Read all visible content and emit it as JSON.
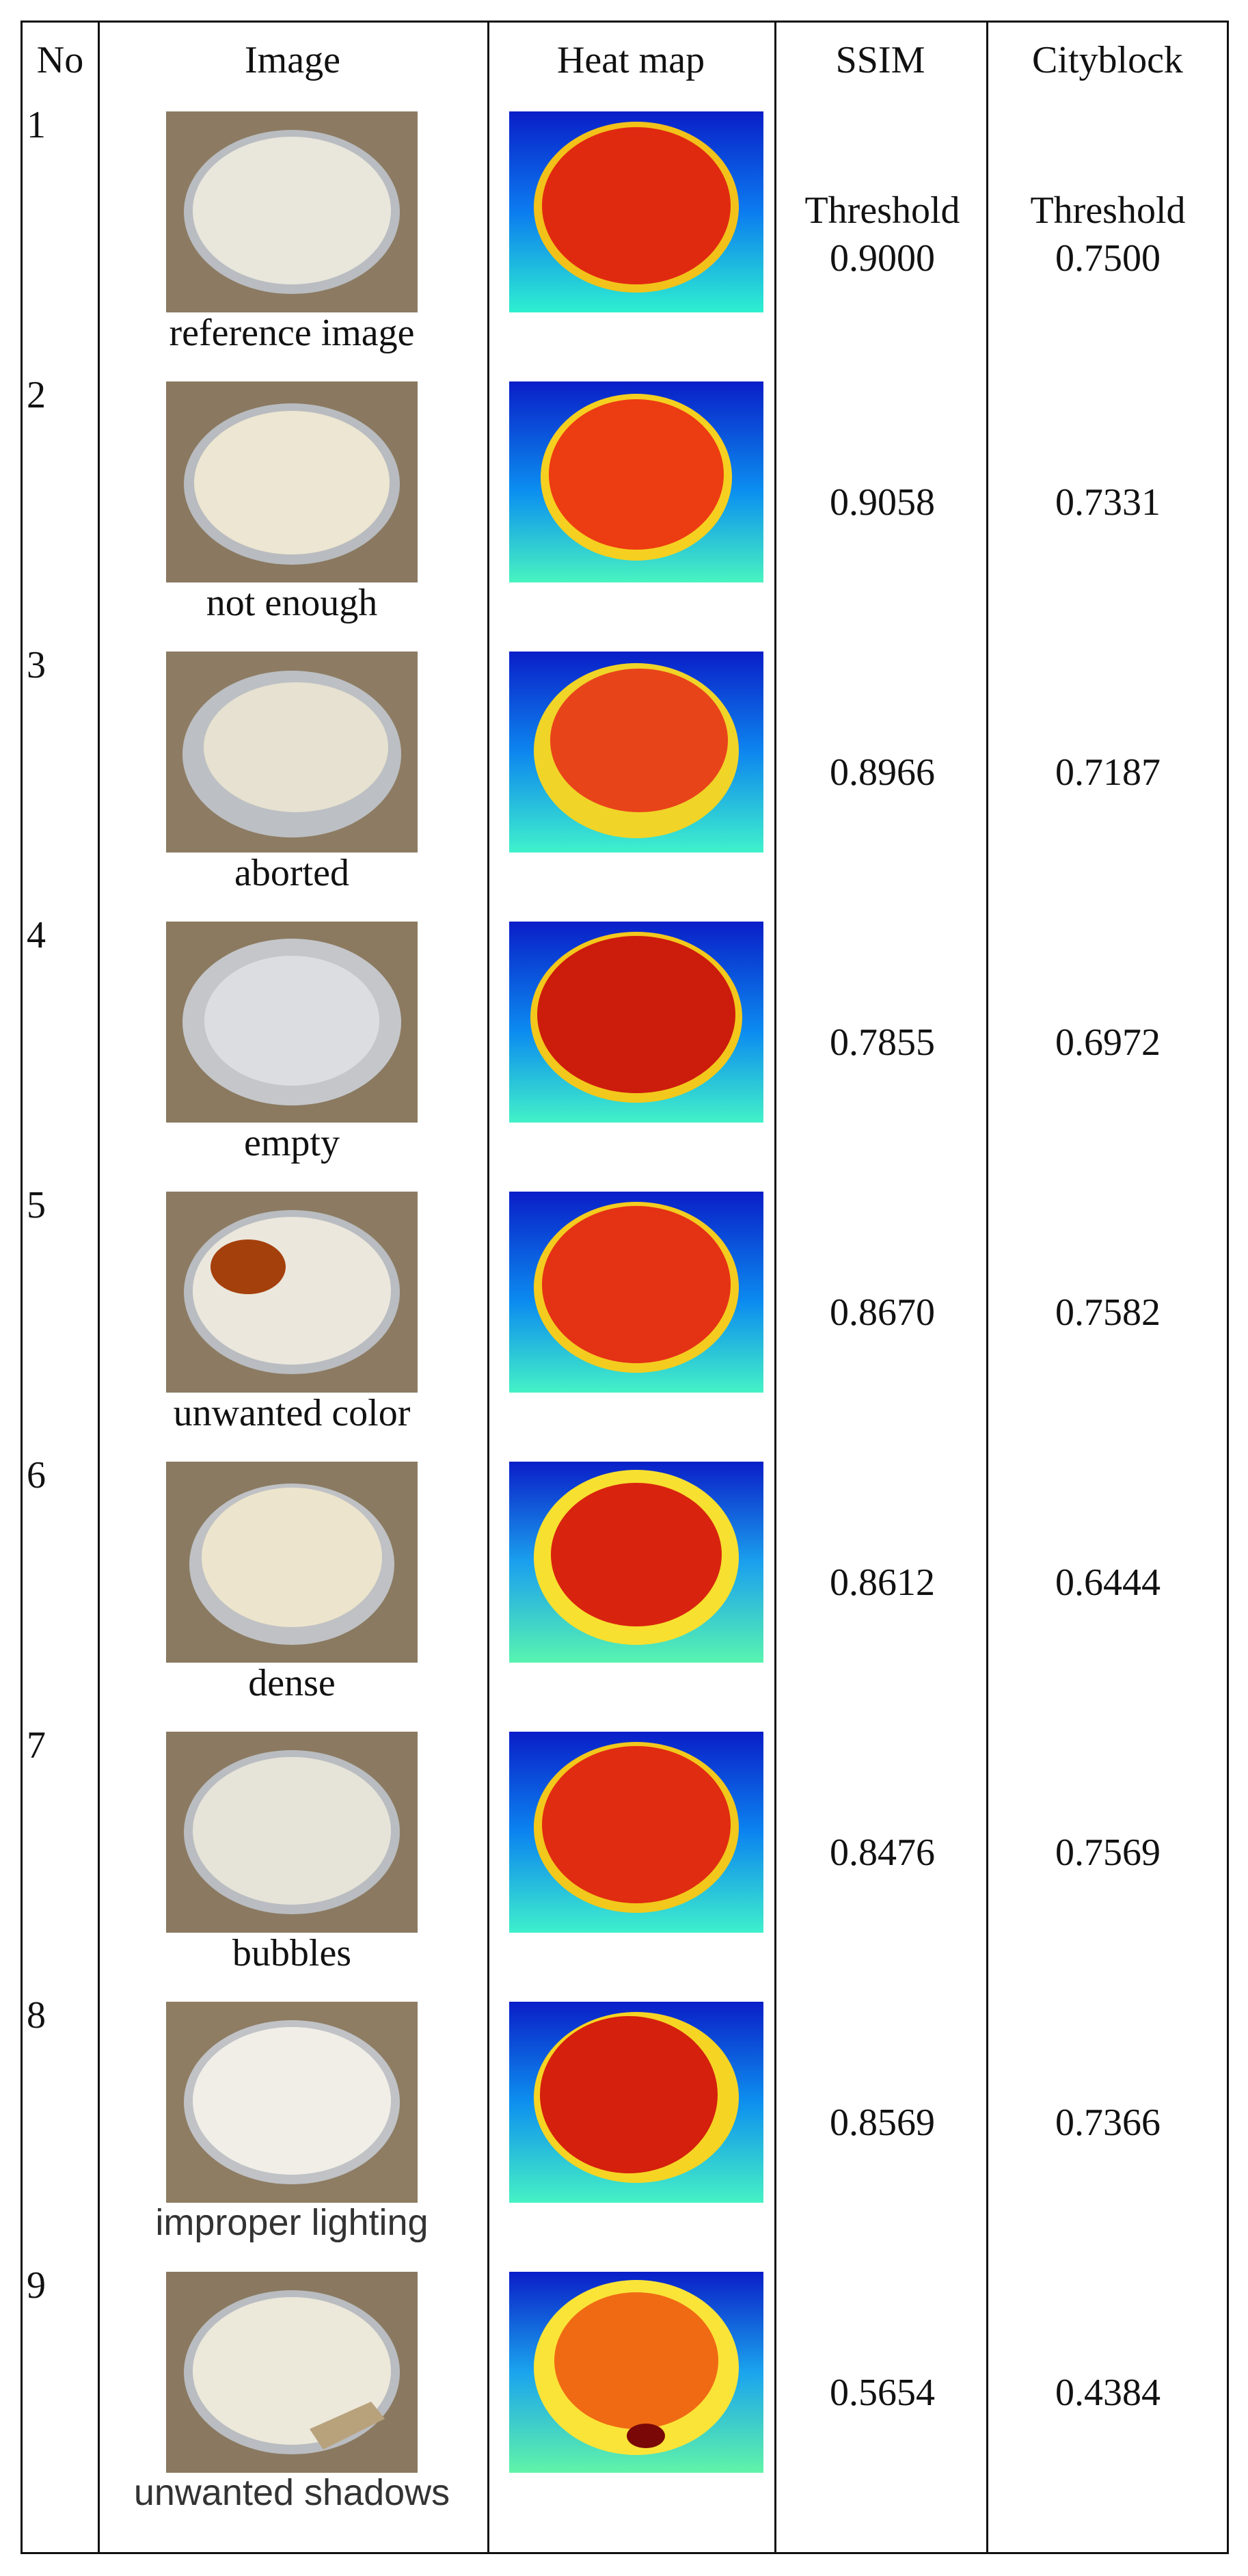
{
  "header": {
    "no": "No",
    "image": "Image",
    "heatmap": "Heat map",
    "ssim": "SSIM",
    "cityblock": "Cityblock"
  },
  "rows": [
    {
      "no": "1",
      "label": "reference image",
      "ssim_word": "Threshold",
      "ssim": "0.9000",
      "city_word": "Threshold",
      "city": "0.7500"
    },
    {
      "no": "2",
      "label": "not enough",
      "ssim": "0.9058",
      "city": "0.7331"
    },
    {
      "no": "3",
      "label": "aborted",
      "ssim": "0.8966",
      "city": "0.7187"
    },
    {
      "no": "4",
      "label": "empty",
      "ssim": "0.7855",
      "city": "0.6972"
    },
    {
      "no": "5",
      "label": "unwanted color",
      "ssim": "0.8670",
      "city": "0.7582"
    },
    {
      "no": "6",
      "label": "dense",
      "ssim": "0.8612",
      "city": "0.6444"
    },
    {
      "no": "7",
      "label": "bubbles",
      "ssim": "0.8476",
      "city": "0.7569"
    },
    {
      "no": "8",
      "label": "improper lighting",
      "ssim": "0.8569",
      "city": "0.7366"
    },
    {
      "no": "9",
      "label": "unwanted shadows",
      "ssim": "0.5654",
      "city": "0.4384"
    }
  ]
}
